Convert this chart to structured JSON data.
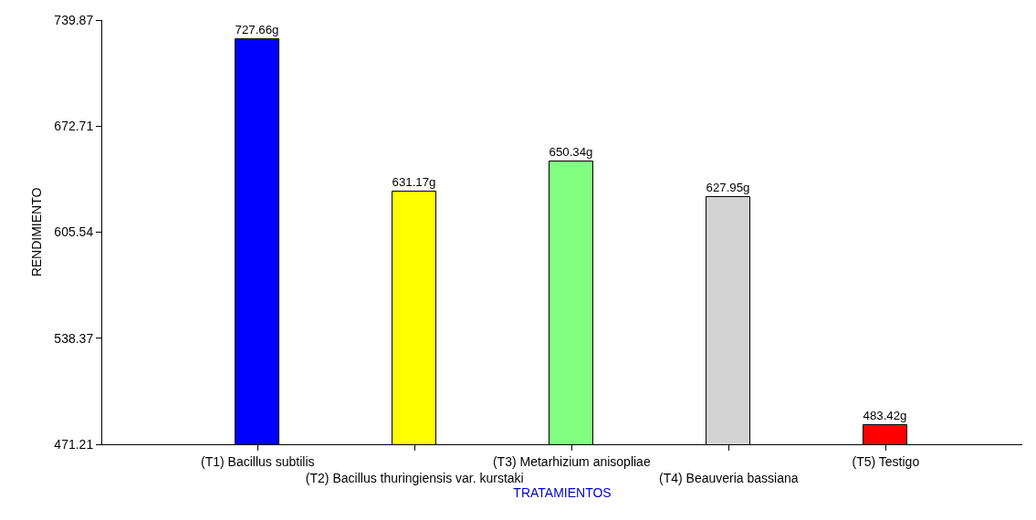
{
  "chart_data": {
    "type": "bar",
    "xlabel": "TRATAMIENTOS",
    "ylabel": "RENDIMIENTO",
    "categories": [
      "(T1) Bacillus subtilis",
      "(T2) Bacillus thuringiensis var. kurstaki",
      "(T3) Metarhizium anisopliae",
      "(T4) Beauveria bassiana",
      "(T5) Testigo"
    ],
    "values": [
      727.66,
      631.17,
      650.34,
      627.95,
      483.42
    ],
    "value_labels": [
      "727.66g",
      "631.17g",
      "650.34g",
      "627.95g",
      "483.42g"
    ],
    "colors": [
      "#0000ff",
      "#ffff00",
      "#80ff80",
      "#d3d3d3",
      "#ff0000"
    ],
    "ylim": [
      471.21,
      739.87
    ],
    "yticks": [
      471.21,
      538.37,
      605.54,
      672.71,
      739.87
    ],
    "grid": false
  }
}
